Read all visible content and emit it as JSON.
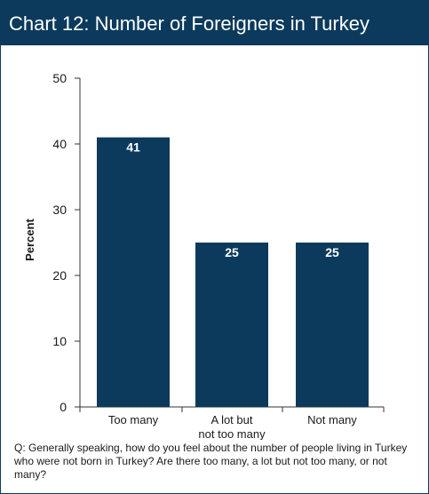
{
  "title": "Chart 12: Number of Foreigners in Turkey",
  "question": "Q: Generally speaking, how do you feel about the number of people living in Turkey who were not born in Turkey? Are there too many, a lot but not too many, or not many?",
  "colors": {
    "bar": "#0b3a5c",
    "header_bg": "#0b3a5c",
    "header_text": "#ffffff",
    "axis": "#333333",
    "bar_label": "#ffffff"
  },
  "chart_data": {
    "type": "bar",
    "categories": [
      "Too many",
      "A lot but\nnot too many",
      "Not many"
    ],
    "values": [
      41,
      25,
      25
    ],
    "data_labels": [
      "41",
      "25",
      "25"
    ],
    "ylabel": "Percent",
    "xlabel": "",
    "ylim": [
      0,
      50
    ],
    "yticks": [
      0,
      10,
      20,
      30,
      40,
      50
    ],
    "grid": false,
    "legend": "none"
  }
}
